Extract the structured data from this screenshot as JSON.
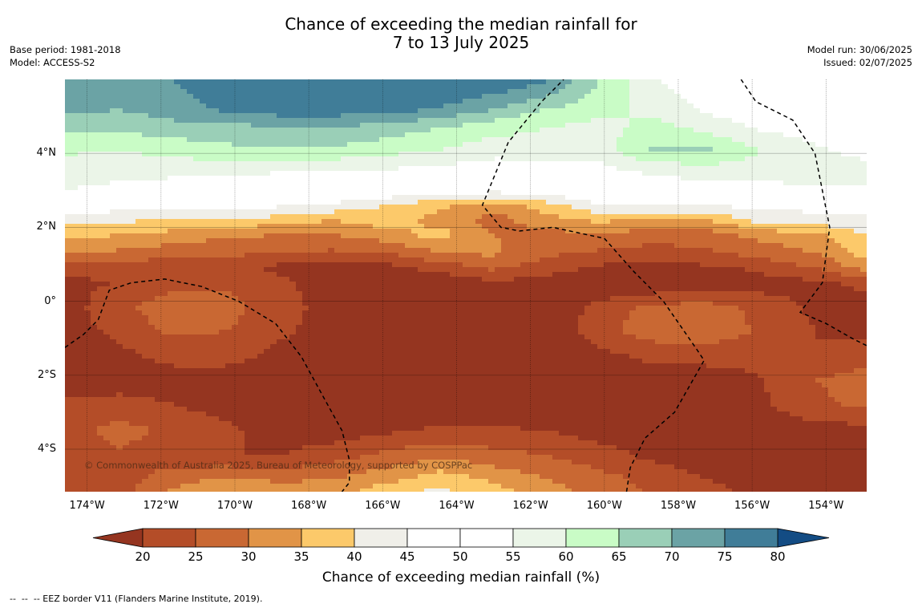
{
  "header": {
    "title_line1": "Chance of exceeding the median rainfall for",
    "title_line2": "7 to 13 July 2025",
    "base_period": "Base period: 1981-2018",
    "model": "Model: ACCESS-S2",
    "model_run": "Model run: 30/06/2025",
    "issued": "Issued: 02/07/2025"
  },
  "chart_data": {
    "type": "heatmap",
    "projection": "equirectangular",
    "xlim": [
      -174.6,
      -152.9
    ],
    "ylim": [
      -5.15,
      6.0
    ],
    "grid": true,
    "y_ticks": [
      {
        "value": 4,
        "label": "4°N"
      },
      {
        "value": 2,
        "label": "2°N"
      },
      {
        "value": 0,
        "label": "0°"
      },
      {
        "value": -2,
        "label": "2°S"
      },
      {
        "value": -4,
        "label": "4°S"
      }
    ],
    "x_ticks": [
      {
        "value": -174,
        "label": "174°W"
      },
      {
        "value": -172,
        "label": "172°W"
      },
      {
        "value": -170,
        "label": "170°W"
      },
      {
        "value": -168,
        "label": "168°W"
      },
      {
        "value": -166,
        "label": "166°W"
      },
      {
        "value": -164,
        "label": "164°W"
      },
      {
        "value": -162,
        "label": "162°W"
      },
      {
        "value": -160,
        "label": "160°W"
      },
      {
        "value": -158,
        "label": "158°W"
      },
      {
        "value": -156,
        "label": "156°W"
      },
      {
        "value": -154,
        "label": "154°W"
      }
    ],
    "levels": [
      20,
      25,
      30,
      35,
      40,
      45,
      50,
      55,
      60,
      65,
      70,
      75,
      80
    ],
    "colors": [
      "#953520",
      "#b44d28",
      "#c96833",
      "#e19447",
      "#fcc96a",
      "#f0efe9",
      "#ffffff",
      "#ffffff",
      "#ebf5e8",
      "#c9fcc6",
      "#9acfb7",
      "#6ba3a5",
      "#407d98",
      "#134c84"
    ],
    "field_rows": [
      {
        "lat": 6.0,
        "values": [
          72,
          72,
          75,
          78,
          80,
          80,
          80,
          80,
          80,
          76,
          65,
          55,
          52,
          50,
          48,
          45
        ]
      },
      {
        "lat": 5.2,
        "values": [
          72,
          70,
          73,
          76,
          78,
          78,
          77,
          75,
          70,
          65,
          62,
          58,
          54,
          52,
          50,
          48
        ]
      },
      {
        "lat": 4.7,
        "values": [
          66,
          66,
          68,
          68,
          70,
          70,
          68,
          65,
          62,
          60,
          58,
          62,
          58,
          54,
          52,
          50
        ]
      },
      {
        "lat": 4.1,
        "values": [
          61,
          60,
          62,
          64,
          64,
          64,
          62,
          60,
          57,
          58,
          58,
          66,
          66,
          60,
          56,
          52
        ]
      },
      {
        "lat": 3.5,
        "values": [
          57,
          56,
          56,
          56,
          55,
          55,
          54,
          53,
          52,
          52,
          53,
          56,
          57,
          58,
          60,
          58
        ]
      },
      {
        "lat": 3.0,
        "values": [
          55,
          54,
          53,
          53,
          52,
          52,
          50,
          48,
          47,
          48,
          50,
          52,
          52,
          52,
          53,
          54
        ]
      },
      {
        "lat": 2.6,
        "values": [
          49,
          48,
          47,
          47,
          46,
          44,
          40,
          36,
          32,
          38,
          45,
          46,
          46,
          46,
          47,
          48
        ]
      },
      {
        "lat": 2.2,
        "values": [
          42,
          41,
          40,
          39,
          38,
          35,
          38,
          33,
          28,
          33,
          36,
          33,
          35,
          42,
          43,
          44
        ]
      },
      {
        "lat": 1.8,
        "values": [
          37,
          35,
          33,
          31,
          30,
          30,
          33,
          37,
          30,
          28,
          30,
          27,
          28,
          32,
          34,
          40
        ]
      },
      {
        "lat": 1.3,
        "values": [
          31,
          29,
          27,
          26,
          25,
          24,
          25,
          30,
          31,
          26,
          24,
          23,
          24,
          27,
          30,
          37
        ]
      },
      {
        "lat": 0.9,
        "values": [
          22,
          21,
          22,
          23,
          18,
          17,
          18,
          22,
          26,
          22,
          19,
          18,
          19,
          21,
          25,
          32
        ]
      },
      {
        "lat": 0.5,
        "values": [
          19,
          20,
          23,
          24,
          22,
          16,
          15,
          16,
          19,
          18,
          16,
          15,
          16,
          18,
          19,
          21
        ]
      },
      {
        "lat": -0.2,
        "values": [
          18,
          23,
          29,
          27,
          22,
          18,
          16,
          15,
          15,
          16,
          22,
          27,
          28,
          23,
          19,
          18
        ]
      },
      {
        "lat": -0.8,
        "values": [
          18,
          21,
          26,
          25,
          21,
          18,
          16,
          15,
          15,
          16,
          23,
          28,
          29,
          24,
          20,
          19
        ]
      },
      {
        "lat": -1.4,
        "values": [
          17,
          19,
          22,
          22,
          19,
          17,
          16,
          15,
          15,
          15,
          19,
          22,
          22,
          21,
          20,
          22
        ]
      },
      {
        "lat": -2.1,
        "values": [
          16,
          17,
          18,
          18,
          17,
          16,
          15,
          15,
          15,
          15,
          16,
          17,
          18,
          20,
          25,
          27
        ]
      },
      {
        "lat": -2.8,
        "values": [
          21,
          22,
          20,
          18,
          17,
          16,
          16,
          15,
          15,
          15,
          15,
          16,
          17,
          19,
          24,
          26
        ]
      },
      {
        "lat": -3.5,
        "values": [
          23,
          27,
          24,
          21,
          18,
          17,
          19,
          21,
          21,
          20,
          18,
          17,
          16,
          17,
          18,
          18
        ]
      },
      {
        "lat": -4.2,
        "values": [
          22,
          24,
          22,
          20,
          20,
          23,
          27,
          29,
          27,
          25,
          22,
          19,
          17,
          16,
          16,
          16
        ]
      },
      {
        "lat": -4.8,
        "values": [
          20,
          22,
          28,
          31,
          29,
          30,
          33,
          38,
          34,
          30,
          27,
          23,
          20,
          18,
          17,
          16
        ]
      },
      {
        "lat": -5.15,
        "values": [
          20,
          23,
          31,
          34,
          32,
          33,
          38,
          41,
          37,
          32,
          28,
          24,
          21,
          19,
          17,
          16
        ]
      }
    ],
    "field_lons": [
      -174.6,
      -173.15,
      -171.7,
      -170.25,
      -168.8,
      -167.35,
      -165.9,
      -164.45,
      -163.0,
      -161.55,
      -160.1,
      -158.65,
      -157.2,
      -155.75,
      -154.3,
      -152.9
    ],
    "eez_borders": [
      [
        [
          -174.6,
          -1.25
        ],
        [
          -174.1,
          -0.9
        ],
        [
          -173.7,
          -0.5
        ],
        [
          -173.4,
          0.3
        ],
        [
          -172.8,
          0.5
        ],
        [
          -171.9,
          0.6
        ],
        [
          -170.9,
          0.4
        ],
        [
          -169.9,
          0.0
        ],
        [
          -168.9,
          -0.6
        ],
        [
          -168.2,
          -1.5
        ],
        [
          -167.6,
          -2.6
        ],
        [
          -167.1,
          -3.5
        ],
        [
          -166.9,
          -4.3
        ],
        [
          -166.9,
          -4.9
        ],
        [
          -167.1,
          -5.15
        ]
      ],
      [
        [
          -159.4,
          -5.15
        ],
        [
          -159.3,
          -4.5
        ],
        [
          -158.9,
          -3.7
        ],
        [
          -158.1,
          -3.0
        ],
        [
          -157.3,
          -1.6
        ],
        [
          -157.5,
          -1.3
        ],
        [
          -158.4,
          0.0
        ],
        [
          -159.2,
          0.8
        ],
        [
          -160.0,
          1.7
        ],
        [
          -161.4,
          2.0
        ],
        [
          -162.3,
          1.9
        ],
        [
          -162.8,
          2.0
        ],
        [
          -163.3,
          2.6
        ],
        [
          -162.6,
          4.3
        ],
        [
          -161.7,
          5.4
        ],
        [
          -161.1,
          6.0
        ]
      ],
      [
        [
          -156.3,
          6.0
        ],
        [
          -155.9,
          5.4
        ],
        [
          -154.9,
          4.9
        ],
        [
          -154.3,
          4.0
        ],
        [
          -153.9,
          2.0
        ],
        [
          -154.1,
          0.5
        ],
        [
          -154.7,
          -0.3
        ],
        [
          -154.0,
          -0.6
        ],
        [
          -153.3,
          -1.0
        ],
        [
          -152.9,
          -1.2
        ]
      ]
    ]
  },
  "credit": "© Commonwealth of Australia 2025, Bureau of Meteorology, supported by COSPPac",
  "colorbar": {
    "label": "Chance of exceeding median rainfall (%)",
    "tick_labels": [
      "20",
      "25",
      "30",
      "35",
      "40",
      "45",
      "50",
      "55",
      "60",
      "65",
      "70",
      "75",
      "80"
    ]
  },
  "footnote": "--  --  -- EEZ border V11 (Flanders Marine Institute, 2019)."
}
